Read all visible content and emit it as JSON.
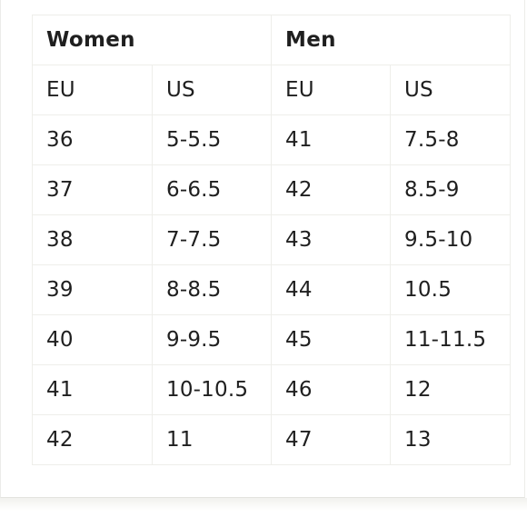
{
  "table": {
    "groups": [
      "Women",
      "Men"
    ],
    "subheaders": [
      "EU",
      "US",
      "EU",
      "US"
    ],
    "rows": [
      [
        "36",
        "5-5.5",
        "41",
        "7.5-8"
      ],
      [
        "37",
        "6-6.5",
        "42",
        "8.5-9"
      ],
      [
        "38",
        "7-7.5",
        "43",
        "9.5-10"
      ],
      [
        "39",
        "8-8.5",
        "44",
        "10.5"
      ],
      [
        "40",
        "9-9.5",
        "45",
        "11-11.5"
      ],
      [
        "41",
        "10-10.5",
        "46",
        "12"
      ],
      [
        "42",
        "11",
        "47",
        "13"
      ]
    ]
  }
}
